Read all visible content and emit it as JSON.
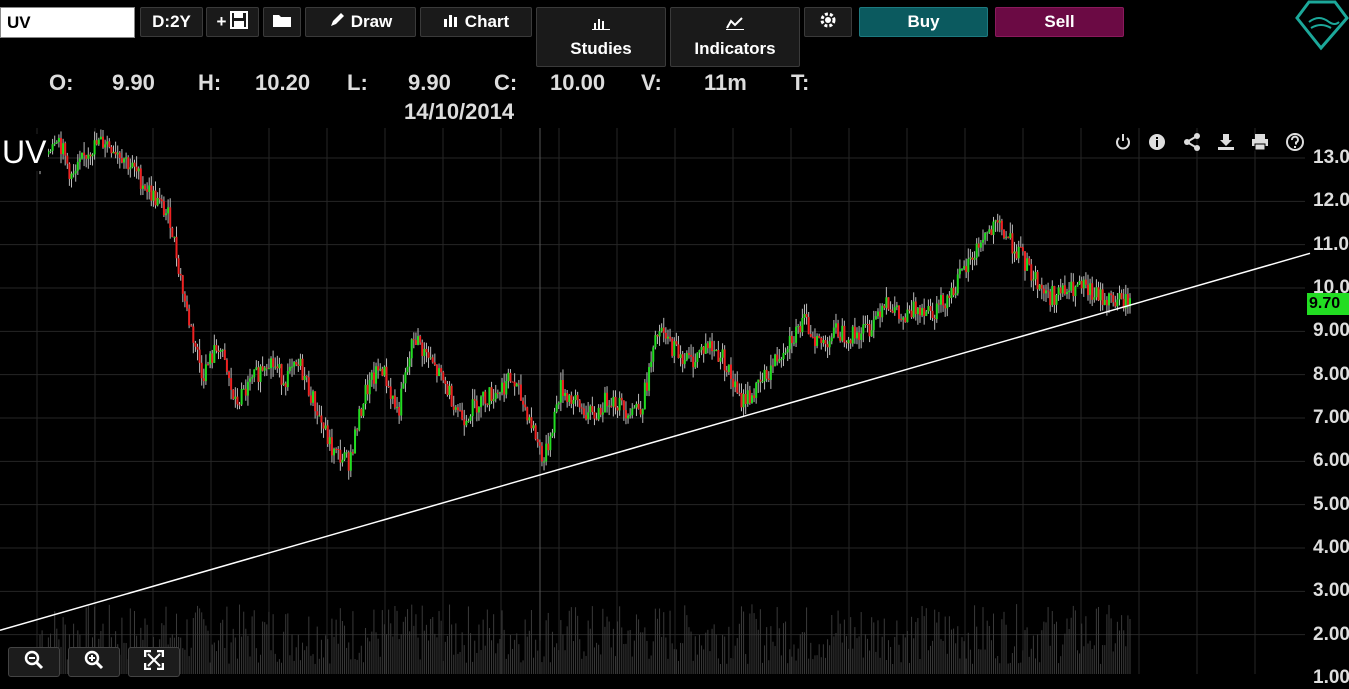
{
  "toolbar": {
    "symbol_value": "UV",
    "period_label": "D:2Y",
    "plus_label": "+",
    "draw_label": "Draw",
    "chart_label": "Chart",
    "studies_label": "Studies",
    "indicators_label": "Indicators",
    "buy_label": "Buy",
    "sell_label": "Sell"
  },
  "ohlc": {
    "o_label": "O:",
    "o_value": "9.90",
    "h_label": "H:",
    "h_value": "10.20",
    "l_label": "L:",
    "l_value": "9.90",
    "c_label": "C:",
    "c_value": "10.00",
    "v_label": "V:",
    "v_value": "11m",
    "t_label": "T:",
    "date": "14/10/2014"
  },
  "chart_label": "UV",
  "colors": {
    "up": "#22dd22",
    "down": "#ee2222",
    "buy": "#0b5a5f",
    "sell": "#6b0a44",
    "last_price": "#22dd22"
  },
  "chart_data": {
    "type": "candlestick",
    "symbol": "UV",
    "yaxis_ticks": [
      "13.0",
      "12.0",
      "11.0",
      "10.0",
      "9.00",
      "8.00",
      "7.00",
      "6.00",
      "5.00",
      "4.00",
      "3.00",
      "2.00",
      "1.00"
    ],
    "ylim": [
      1,
      13.6
    ],
    "last_price": "9.70",
    "trendline": {
      "start": 2.1,
      "end": 10.8
    },
    "close_path": [
      12.8,
      13.6,
      12.5,
      13.2,
      13.4,
      13.1,
      12.6,
      12.1,
      11.6,
      9.5,
      8.0,
      8.7,
      7.3,
      7.8,
      8.4,
      7.9,
      8.2,
      7.2,
      6.2,
      6.0,
      7.6,
      8.2,
      7.1,
      8.9,
      8.3,
      7.7,
      7.0,
      7.4,
      7.6,
      7.9,
      7.1,
      6.0,
      7.7,
      7.3,
      7.0,
      7.5,
      7.2,
      7.3,
      9.0,
      8.6,
      8.3,
      8.7,
      8.4,
      7.4,
      7.6,
      8.2,
      8.8,
      9.2,
      8.7,
      9.0,
      8.9,
      9.1,
      9.8,
      9.2,
      9.6,
      9.5,
      9.9,
      10.5,
      11.2,
      11.4,
      10.9,
      10.3,
      9.8,
      9.9,
      10.0,
      9.8,
      9.7,
      9.7
    ]
  },
  "icons": [
    "save-icon",
    "folder-icon",
    "pencil-icon",
    "bar-chart-icon",
    "studies-icon",
    "indicators-icon",
    "gear-icon",
    "logo-icon",
    "power-icon",
    "info-icon",
    "share-icon",
    "download-icon",
    "print-icon",
    "help-icon",
    "zoom-out-icon",
    "zoom-in-icon",
    "fullscreen-icon"
  ]
}
